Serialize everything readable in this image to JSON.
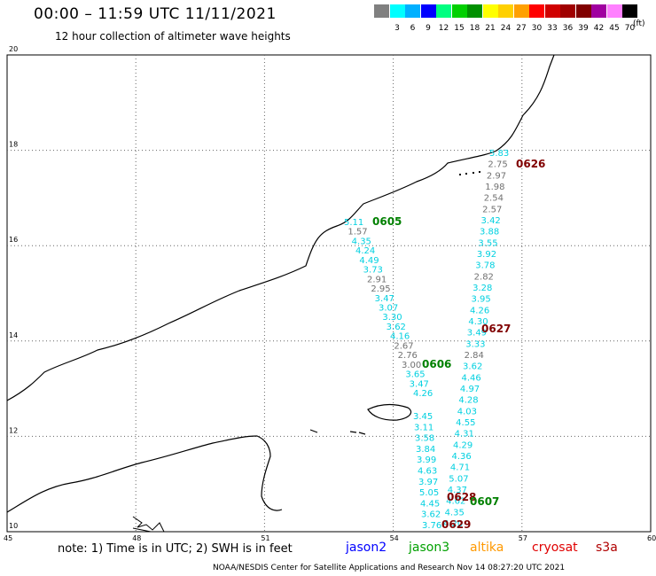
{
  "header": {
    "title": "00:00 – 11:59 UTC 11/11/2021",
    "subtitle": "12 hour collection of altimeter wave heights"
  },
  "legend": {
    "unit": "(ft)",
    "swatches": [
      {
        "label": "",
        "color": "#808080"
      },
      {
        "label": "3",
        "color": "#00ffff"
      },
      {
        "label": "6",
        "color": "#00b0ff"
      },
      {
        "label": "9",
        "color": "#0000ff"
      },
      {
        "label": "12",
        "color": "#00ff80"
      },
      {
        "label": "15",
        "color": "#00d000"
      },
      {
        "label": "18",
        "color": "#009000"
      },
      {
        "label": "21",
        "color": "#ffff00"
      },
      {
        "label": "24",
        "color": "#ffd000"
      },
      {
        "label": "27",
        "color": "#ffa000"
      },
      {
        "label": "30",
        "color": "#ff0000"
      },
      {
        "label": "33",
        "color": "#d00000"
      },
      {
        "label": "36",
        "color": "#a00000"
      },
      {
        "label": "39",
        "color": "#800000"
      },
      {
        "label": "42",
        "color": "#a000a0"
      },
      {
        "label": "45",
        "color": "#ff80ff"
      },
      {
        "label": "70",
        "color": "#000000"
      }
    ]
  },
  "map": {
    "lat_labels": [
      "20",
      "18",
      "16",
      "14",
      "12",
      "10"
    ],
    "lon_labels": [
      "45",
      "48",
      "51",
      "54",
      "57",
      "60"
    ],
    "passes": [
      {
        "id": "0626",
        "color": "#800000"
      },
      {
        "id": "0605",
        "color": "#008000"
      },
      {
        "id": "0627",
        "color": "#800000"
      },
      {
        "id": "0606",
        "color": "#008000"
      },
      {
        "id": "0628",
        "color": "#800000"
      },
      {
        "id": "0607",
        "color": "#008000"
      },
      {
        "id": "0629",
        "color": "#800000"
      }
    ],
    "track_a": [
      {
        "v": "5.11",
        "c": "#00d0e0"
      },
      {
        "v": "1.57",
        "c": "#707070"
      },
      {
        "v": "4.35",
        "c": "#00d0e0"
      },
      {
        "v": "4.24",
        "c": "#00d0e0"
      },
      {
        "v": "4.49",
        "c": "#00d0e0"
      },
      {
        "v": "3.73",
        "c": "#00d0e0"
      },
      {
        "v": "2.91",
        "c": "#707070"
      },
      {
        "v": "2.95",
        "c": "#707070"
      },
      {
        "v": "3.47",
        "c": "#00d0e0"
      },
      {
        "v": "3.07",
        "c": "#00d0e0"
      },
      {
        "v": "3.30",
        "c": "#00d0e0"
      },
      {
        "v": "3.62",
        "c": "#00d0e0"
      },
      {
        "v": "4.16",
        "c": "#00d0e0"
      },
      {
        "v": "2.67",
        "c": "#707070"
      },
      {
        "v": "2.76",
        "c": "#707070"
      },
      {
        "v": "3.00",
        "c": "#707070"
      },
      {
        "v": "3.65",
        "c": "#00d0e0"
      },
      {
        "v": "3.47",
        "c": "#00d0e0"
      },
      {
        "v": "4.26",
        "c": "#00d0e0"
      }
    ],
    "track_b": [
      {
        "v": "5.83",
        "c": "#00d0e0"
      },
      {
        "v": "2.75",
        "c": "#707070"
      },
      {
        "v": "2.97",
        "c": "#707070"
      },
      {
        "v": "1.98",
        "c": "#707070"
      },
      {
        "v": "2.54",
        "c": "#707070"
      },
      {
        "v": "2.57",
        "c": "#707070"
      },
      {
        "v": "3.42",
        "c": "#00d0e0"
      },
      {
        "v": "3.88",
        "c": "#00d0e0"
      },
      {
        "v": "3.55",
        "c": "#00d0e0"
      },
      {
        "v": "3.92",
        "c": "#00d0e0"
      },
      {
        "v": "3.78",
        "c": "#00d0e0"
      },
      {
        "v": "2.82",
        "c": "#707070"
      },
      {
        "v": "3.28",
        "c": "#00d0e0"
      },
      {
        "v": "3.95",
        "c": "#00d0e0"
      },
      {
        "v": "4.26",
        "c": "#00d0e0"
      },
      {
        "v": "4.30",
        "c": "#00d0e0"
      },
      {
        "v": "3.49",
        "c": "#00d0e0"
      },
      {
        "v": "3.33",
        "c": "#00d0e0"
      },
      {
        "v": "2.84",
        "c": "#707070"
      },
      {
        "v": "3.62",
        "c": "#00d0e0"
      },
      {
        "v": "4.46",
        "c": "#00d0e0"
      },
      {
        "v": "4.97",
        "c": "#00d0e0"
      },
      {
        "v": "4.28",
        "c": "#00d0e0"
      },
      {
        "v": "4.03",
        "c": "#00d0e0"
      },
      {
        "v": "4.55",
        "c": "#00d0e0"
      },
      {
        "v": "4.31",
        "c": "#00d0e0"
      },
      {
        "v": "4.29",
        "c": "#00d0e0"
      },
      {
        "v": "4.36",
        "c": "#00d0e0"
      },
      {
        "v": "4.71",
        "c": "#00d0e0"
      },
      {
        "v": "5.07",
        "c": "#00d0e0"
      },
      {
        "v": "4.37",
        "c": "#00d0e0"
      },
      {
        "v": "4.62",
        "c": "#00d0e0"
      },
      {
        "v": "4.35",
        "c": "#00d0e0"
      },
      {
        "v": "4.20",
        "c": "#00d0e0"
      }
    ],
    "track_c": [
      {
        "v": "3.45",
        "c": "#00d0e0"
      },
      {
        "v": "3.11",
        "c": "#00d0e0"
      },
      {
        "v": "3.58",
        "c": "#00d0e0"
      },
      {
        "v": "3.84",
        "c": "#00d0e0"
      },
      {
        "v": "3.99",
        "c": "#00d0e0"
      },
      {
        "v": "4.63",
        "c": "#00d0e0"
      },
      {
        "v": "3.97",
        "c": "#00d0e0"
      },
      {
        "v": "5.05",
        "c": "#00d0e0"
      },
      {
        "v": "4.45",
        "c": "#00d0e0"
      },
      {
        "v": "3.62",
        "c": "#00d0e0"
      },
      {
        "v": "3.76",
        "c": "#00d0e0"
      }
    ]
  },
  "footer": {
    "note": "note:  1) Time is in UTC;  2) SWH is in feet",
    "missions": [
      {
        "label": "jason2",
        "color": "#0000ff"
      },
      {
        "label": "jason3",
        "color": "#00a000"
      },
      {
        "label": "altika",
        "color": "#ff9900"
      },
      {
        "label": "cryosat",
        "color": "#e00000"
      },
      {
        "label": "s3a",
        "color": "#b00000"
      }
    ],
    "credit": "NOAA/NESDIS Center for Satellite Applications and Research    Nov 14 08:27:20 UTC 2021"
  }
}
